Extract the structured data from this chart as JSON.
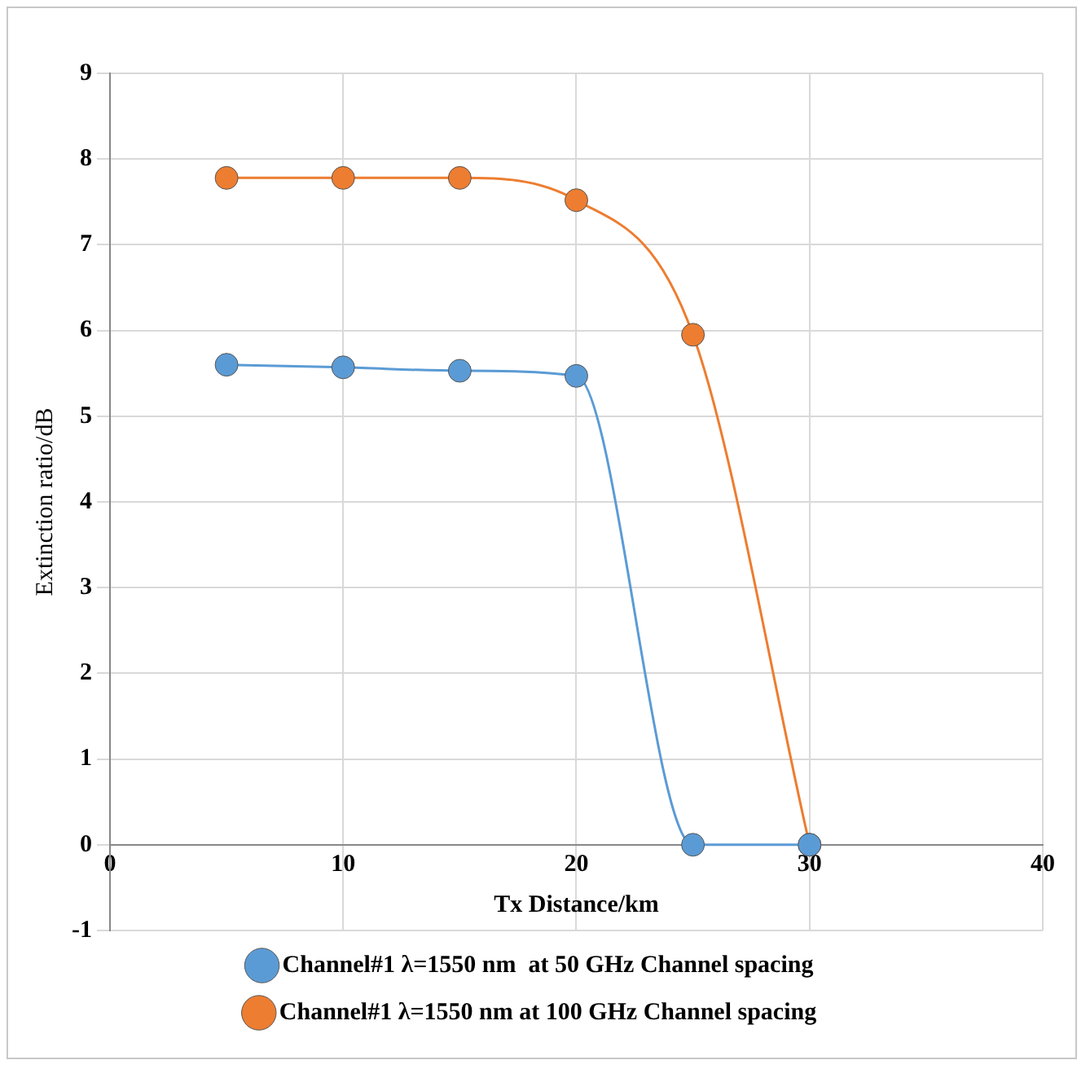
{
  "chart_data": {
    "type": "line",
    "xlabel": "Tx Distance/km",
    "ylabel": "Extinction ratio/dB",
    "x": [
      5,
      10,
      15,
      20,
      25,
      30
    ],
    "series": [
      {
        "name": "Channel#1 λ=1550 nm  at 50 GHz Channel spacing",
        "color": "#5b9bd5",
        "values": [
          5.6,
          5.57,
          5.53,
          5.47,
          0,
          0
        ]
      },
      {
        "name": "Channel#1 λ=1550 nm at 100 GHz Channel spacing",
        "color": "#ed7d31",
        "values": [
          7.78,
          7.78,
          7.78,
          7.52,
          5.95,
          0
        ]
      }
    ],
    "xlim": [
      0,
      40
    ],
    "xticks": [
      0,
      10,
      20,
      30,
      40
    ],
    "ylim": [
      -1,
      9
    ],
    "yticks": [
      -1,
      0,
      1,
      2,
      3,
      4,
      5,
      6,
      7,
      8,
      9
    ],
    "grid": true,
    "legend": "bottom",
    "marker": "circle"
  }
}
